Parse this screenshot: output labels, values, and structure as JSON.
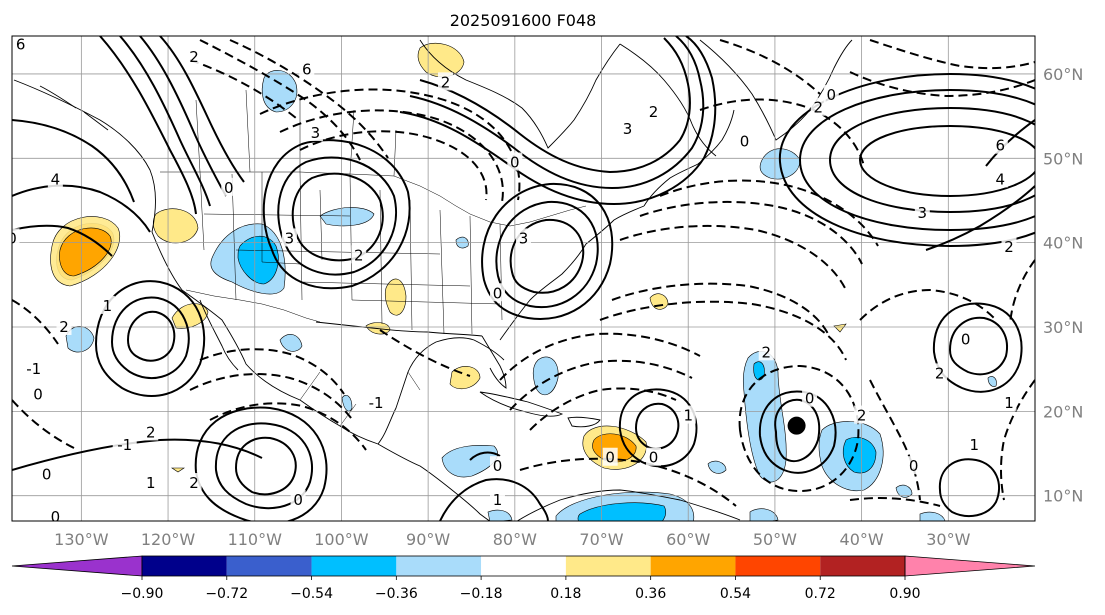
{
  "title": "2025091600 F048",
  "map": {
    "lon_range": [
      -138,
      -20
    ],
    "lat_range": [
      7,
      64.5
    ],
    "gridlines": true,
    "latitudes": [
      {
        "value": 10,
        "label": "10°N"
      },
      {
        "value": 20,
        "label": "20°N"
      },
      {
        "value": 30,
        "label": "30°N"
      },
      {
        "value": 40,
        "label": "40°N"
      },
      {
        "value": 50,
        "label": "50°N"
      },
      {
        "value": 60,
        "label": "60°N"
      }
    ],
    "longitudes": [
      {
        "value": -130,
        "label": "130°W"
      },
      {
        "value": -120,
        "label": "120°W"
      },
      {
        "value": -110,
        "label": "110°W"
      },
      {
        "value": -100,
        "label": "100°W"
      },
      {
        "value": -90,
        "label": "90°W"
      },
      {
        "value": -80,
        "label": "80°W"
      },
      {
        "value": -70,
        "label": "70°W"
      },
      {
        "value": -60,
        "label": "60°W"
      },
      {
        "value": -50,
        "label": "50°W"
      },
      {
        "value": -40,
        "label": "40°W"
      },
      {
        "value": -30,
        "label": "30°W"
      }
    ],
    "storm_marker": {
      "lon": -47.5,
      "lat": 18.3
    },
    "contour_labels": [
      {
        "lon": -117,
        "lat": 62,
        "text": "2"
      },
      {
        "lon": -104,
        "lat": 60.5,
        "text": "6"
      },
      {
        "lon": -88,
        "lat": 59,
        "text": "2"
      },
      {
        "lon": -103,
        "lat": 53,
        "text": "3"
      },
      {
        "lon": -106,
        "lat": 40.5,
        "text": "3"
      },
      {
        "lon": -79,
        "lat": 40.5,
        "text": "3"
      },
      {
        "lon": -82,
        "lat": 34,
        "text": "0"
      },
      {
        "lon": -80,
        "lat": 49.5,
        "text": "0"
      },
      {
        "lon": -67,
        "lat": 53.5,
        "text": "3"
      },
      {
        "lon": -64,
        "lat": 55.5,
        "text": "2"
      },
      {
        "lon": -45,
        "lat": 56,
        "text": "2"
      },
      {
        "lon": -43.5,
        "lat": 57.5,
        "text": "0"
      },
      {
        "lon": -24,
        "lat": 51.5,
        "text": "6"
      },
      {
        "lon": -24,
        "lat": 47.5,
        "text": "4"
      },
      {
        "lon": -33,
        "lat": 43.5,
        "text": "3"
      },
      {
        "lon": -23,
        "lat": 39.5,
        "text": "2"
      },
      {
        "lon": -28,
        "lat": 28.5,
        "text": "0"
      },
      {
        "lon": -31,
        "lat": 24.5,
        "text": "2"
      },
      {
        "lon": -23,
        "lat": 21,
        "text": "1"
      },
      {
        "lon": -27,
        "lat": 16,
        "text": "1"
      },
      {
        "lon": -34,
        "lat": 13.5,
        "text": "0"
      },
      {
        "lon": -40,
        "lat": 19.5,
        "text": "2"
      },
      {
        "lon": -46,
        "lat": 21.5,
        "text": "0"
      },
      {
        "lon": -51,
        "lat": 27,
        "text": "2"
      },
      {
        "lon": -60,
        "lat": 19.5,
        "text": "1"
      },
      {
        "lon": -64,
        "lat": 14.5,
        "text": "0"
      },
      {
        "lon": -82,
        "lat": 13.5,
        "text": "0"
      },
      {
        "lon": -82,
        "lat": 9.5,
        "text": "1"
      },
      {
        "lon": -96,
        "lat": 21,
        "text": "-1"
      },
      {
        "lon": -98,
        "lat": 38.5,
        "text": "2"
      },
      {
        "lon": -127,
        "lat": 32.5,
        "text": "1"
      },
      {
        "lon": -132,
        "lat": 30,
        "text": "2"
      },
      {
        "lon": -135.5,
        "lat": 25,
        "text": "-1"
      },
      {
        "lon": -135,
        "lat": 22,
        "text": "0"
      },
      {
        "lon": -134,
        "lat": 12.5,
        "text": "0"
      },
      {
        "lon": -133,
        "lat": 7.5,
        "text": "0"
      },
      {
        "lon": -125,
        "lat": 16,
        "text": "-1"
      },
      {
        "lon": -122,
        "lat": 11.5,
        "text": "1"
      },
      {
        "lon": -117,
        "lat": 11.5,
        "text": "2"
      },
      {
        "lon": -122,
        "lat": 17.5,
        "text": "2"
      },
      {
        "lon": -138,
        "lat": 40.5,
        "text": "0"
      },
      {
        "lon": -133,
        "lat": 47.5,
        "text": "4"
      },
      {
        "lon": -137,
        "lat": 63.5,
        "text": "6"
      },
      {
        "lon": -113,
        "lat": 46.5,
        "text": "0"
      },
      {
        "lon": -105,
        "lat": 9.5,
        "text": "0"
      },
      {
        "lon": -69,
        "lat": 14.5,
        "text": "0"
      },
      {
        "lon": -53.5,
        "lat": 52,
        "text": "0"
      }
    ]
  },
  "colorbar": {
    "tick_labels": [
      "−0.90",
      "−0.72",
      "−0.54",
      "−0.36",
      "−0.18",
      "0.18",
      "0.36",
      "0.54",
      "0.72",
      "0.90"
    ],
    "colors": [
      "#9a32cd",
      "#00008b",
      "#3a5fcd",
      "#00bfff",
      "#a9dcfa",
      "#ffffff",
      "#ffe989",
      "#ffa500",
      "#ff4500",
      "#b22222",
      "#ff82ab"
    ]
  }
}
